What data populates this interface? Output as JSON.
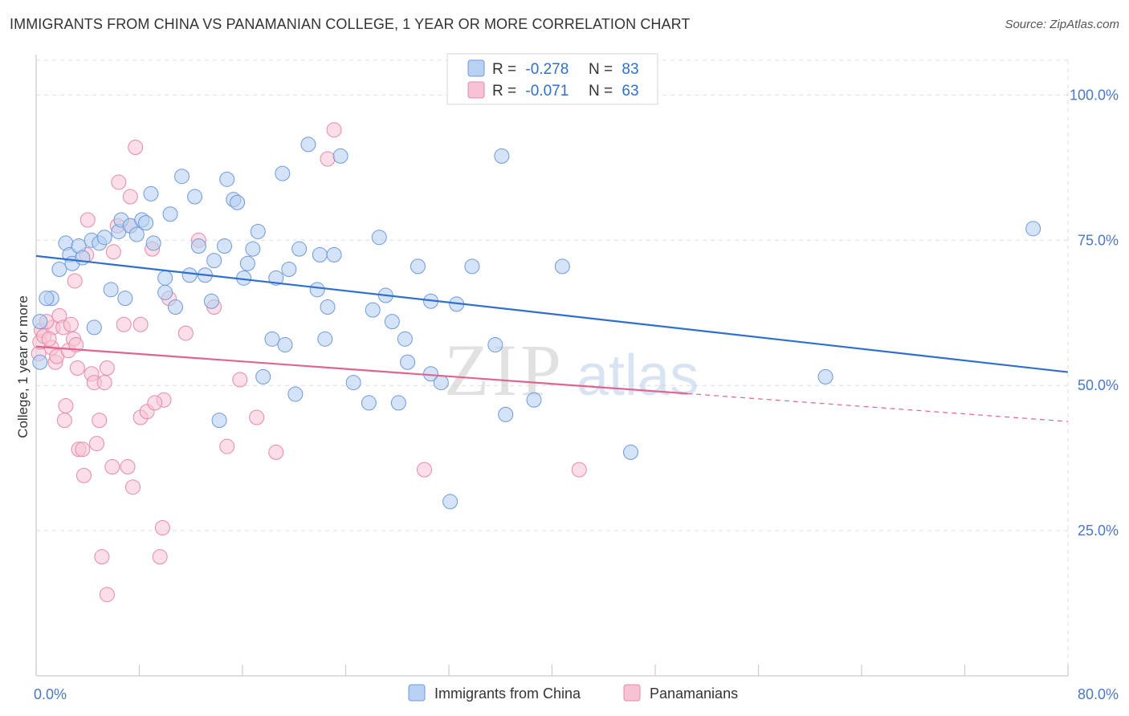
{
  "title": "IMMIGRANTS FROM CHINA VS PANAMANIAN COLLEGE, 1 YEAR OR MORE CORRELATION CHART",
  "source": "Source: ZipAtlas.com",
  "watermark": {
    "zip": "ZIP",
    "atlas": "atlas"
  },
  "colors": {
    "blue_fill": "#b8d0f2",
    "blue_stroke": "#6f9ad8",
    "blue_line": "#2f6fd0",
    "pink_fill": "#f7c3d4",
    "pink_stroke": "#e58aa8",
    "pink_line": "#e0648f",
    "grid": "#dddddd",
    "tick_text": "#4a78c2"
  },
  "legend": {
    "r_label": "R =",
    "n_label": "N =",
    "rows": [
      {
        "r": "-0.278",
        "n": "83"
      },
      {
        "r": "-0.071",
        "n": "63"
      }
    ]
  },
  "bottom_legend": [
    "Immigrants from China",
    "Panamanians"
  ],
  "chart_data": {
    "type": "scatter",
    "title": "IMMIGRANTS FROM CHINA VS PANAMANIAN COLLEGE, 1 YEAR OR MORE CORRELATION CHART",
    "xlabel": "",
    "ylabel": "College, 1 year or more",
    "xlim": [
      0,
      80
    ],
    "ylim": [
      0,
      106
    ],
    "x_tick_labels": [
      "0.0%",
      "80.0%"
    ],
    "y_ticks": [
      25,
      50,
      75,
      100
    ],
    "y_tick_labels": [
      "25.0%",
      "50.0%",
      "75.0%",
      "100.0%"
    ],
    "grid": true,
    "legend_position": "top-center",
    "series": [
      {
        "name": "Immigrants from China",
        "r": -0.278,
        "n": 83,
        "trend": {
          "x0": 0,
          "y0": 72.3,
          "x1": 80,
          "y1": 52.3
        },
        "points": [
          [
            0.3,
            54.0
          ],
          [
            0.3,
            61.0
          ],
          [
            1.2,
            65.0
          ],
          [
            1.8,
            70.0
          ],
          [
            2.3,
            74.5
          ],
          [
            2.6,
            72.5
          ],
          [
            2.8,
            71.0
          ],
          [
            3.3,
            74.0
          ],
          [
            4.3,
            75.0
          ],
          [
            4.5,
            60.0
          ],
          [
            4.9,
            74.5
          ],
          [
            5.3,
            75.5
          ],
          [
            5.8,
            66.5
          ],
          [
            6.4,
            76.5
          ],
          [
            6.6,
            78.5
          ],
          [
            6.9,
            65.0
          ],
          [
            7.3,
            77.5
          ],
          [
            7.8,
            76.0
          ],
          [
            8.2,
            78.5
          ],
          [
            8.5,
            78.0
          ],
          [
            8.9,
            83.0
          ],
          [
            9.1,
            74.5
          ],
          [
            10.0,
            68.5
          ],
          [
            10.4,
            79.5
          ],
          [
            10.8,
            63.5
          ],
          [
            10.0,
            66.0
          ],
          [
            11.3,
            86.0
          ],
          [
            11.9,
            69.0
          ],
          [
            12.3,
            82.5
          ],
          [
            12.6,
            74.0
          ],
          [
            13.1,
            69.0
          ],
          [
            13.6,
            64.5
          ],
          [
            13.8,
            71.5
          ],
          [
            14.2,
            44.0
          ],
          [
            14.8,
            85.5
          ],
          [
            14.6,
            74.0
          ],
          [
            15.3,
            82.0
          ],
          [
            15.6,
            81.5
          ],
          [
            16.1,
            68.5
          ],
          [
            16.4,
            71.0
          ],
          [
            16.8,
            73.5
          ],
          [
            17.2,
            76.5
          ],
          [
            17.6,
            51.5
          ],
          [
            18.3,
            58.0
          ],
          [
            18.6,
            68.5
          ],
          [
            19.1,
            86.5
          ],
          [
            19.3,
            57.0
          ],
          [
            19.6,
            70.0
          ],
          [
            20.1,
            48.5
          ],
          [
            20.4,
            73.5
          ],
          [
            21.1,
            91.5
          ],
          [
            21.8,
            66.5
          ],
          [
            22.0,
            72.5
          ],
          [
            22.4,
            58.0
          ],
          [
            22.6,
            63.5
          ],
          [
            23.1,
            72.5
          ],
          [
            23.6,
            89.5
          ],
          [
            24.6,
            50.5
          ],
          [
            25.8,
            47.0
          ],
          [
            26.1,
            63.0
          ],
          [
            26.6,
            75.5
          ],
          [
            27.1,
            65.5
          ],
          [
            27.6,
            61.0
          ],
          [
            28.1,
            47.0
          ],
          [
            28.6,
            58.0
          ],
          [
            28.8,
            54.0
          ],
          [
            29.6,
            70.5
          ],
          [
            30.6,
            64.5
          ],
          [
            30.6,
            52.0
          ],
          [
            31.4,
            50.5
          ],
          [
            32.1,
            30.0
          ],
          [
            32.6,
            64.0
          ],
          [
            33.8,
            70.5
          ],
          [
            35.6,
            57.0
          ],
          [
            36.1,
            89.5
          ],
          [
            36.4,
            45.0
          ],
          [
            38.6,
            47.5
          ],
          [
            40.8,
            70.5
          ],
          [
            46.1,
            38.5
          ],
          [
            61.2,
            51.5
          ],
          [
            77.3,
            77.0
          ],
          [
            0.8,
            65.0
          ],
          [
            3.6,
            72.0
          ]
        ]
      },
      {
        "name": "Panamanians",
        "r": -0.071,
        "n": 63,
        "trend": {
          "x0": 0,
          "y0": 56.7,
          "x1": 50.5,
          "y1": 48.6
        },
        "trend_dashed": {
          "x0": 50.5,
          "y0": 48.6,
          "x1": 80,
          "y1": 43.8
        },
        "points": [
          [
            0.2,
            55.5
          ],
          [
            0.3,
            57.5
          ],
          [
            0.4,
            59.5
          ],
          [
            0.6,
            58.5
          ],
          [
            1.2,
            56.5
          ],
          [
            1.3,
            60.0
          ],
          [
            1.5,
            54.0
          ],
          [
            1.6,
            55.0
          ],
          [
            1.8,
            62.0
          ],
          [
            2.1,
            60.0
          ],
          [
            2.3,
            46.5
          ],
          [
            2.5,
            56.0
          ],
          [
            2.7,
            60.5
          ],
          [
            2.9,
            58.0
          ],
          [
            3.0,
            68.0
          ],
          [
            3.2,
            53.0
          ],
          [
            3.3,
            39.0
          ],
          [
            3.6,
            39.0
          ],
          [
            3.7,
            34.5
          ],
          [
            3.9,
            72.5
          ],
          [
            4.0,
            78.5
          ],
          [
            4.3,
            52.0
          ],
          [
            4.5,
            50.5
          ],
          [
            4.7,
            40.0
          ],
          [
            4.9,
            44.0
          ],
          [
            5.3,
            50.5
          ],
          [
            5.5,
            53.0
          ],
          [
            5.9,
            36.0
          ],
          [
            6.3,
            77.5
          ],
          [
            6.4,
            85.0
          ],
          [
            6.8,
            60.5
          ],
          [
            7.1,
            36.0
          ],
          [
            7.3,
            82.5
          ],
          [
            7.3,
            77.5
          ],
          [
            7.5,
            32.5
          ],
          [
            7.7,
            91.0
          ],
          [
            8.1,
            60.5
          ],
          [
            8.1,
            44.5
          ],
          [
            8.6,
            45.5
          ],
          [
            9.0,
            73.5
          ],
          [
            9.6,
            20.5
          ],
          [
            9.9,
            47.5
          ],
          [
            9.8,
            25.5
          ],
          [
            10.3,
            65.0
          ],
          [
            11.6,
            59.0
          ],
          [
            12.6,
            75.0
          ],
          [
            13.8,
            63.5
          ],
          [
            14.8,
            39.5
          ],
          [
            15.8,
            51.0
          ],
          [
            17.1,
            44.5
          ],
          [
            18.6,
            38.5
          ],
          [
            22.6,
            89.0
          ],
          [
            23.1,
            94.0
          ],
          [
            30.1,
            35.5
          ],
          [
            42.1,
            35.5
          ],
          [
            5.1,
            20.5
          ],
          [
            5.5,
            14.0
          ],
          [
            1.0,
            58.0
          ],
          [
            0.8,
            61.0
          ],
          [
            3.1,
            57.0
          ],
          [
            6.0,
            73.0
          ],
          [
            2.2,
            44.0
          ],
          [
            9.2,
            47.0
          ]
        ]
      }
    ]
  }
}
